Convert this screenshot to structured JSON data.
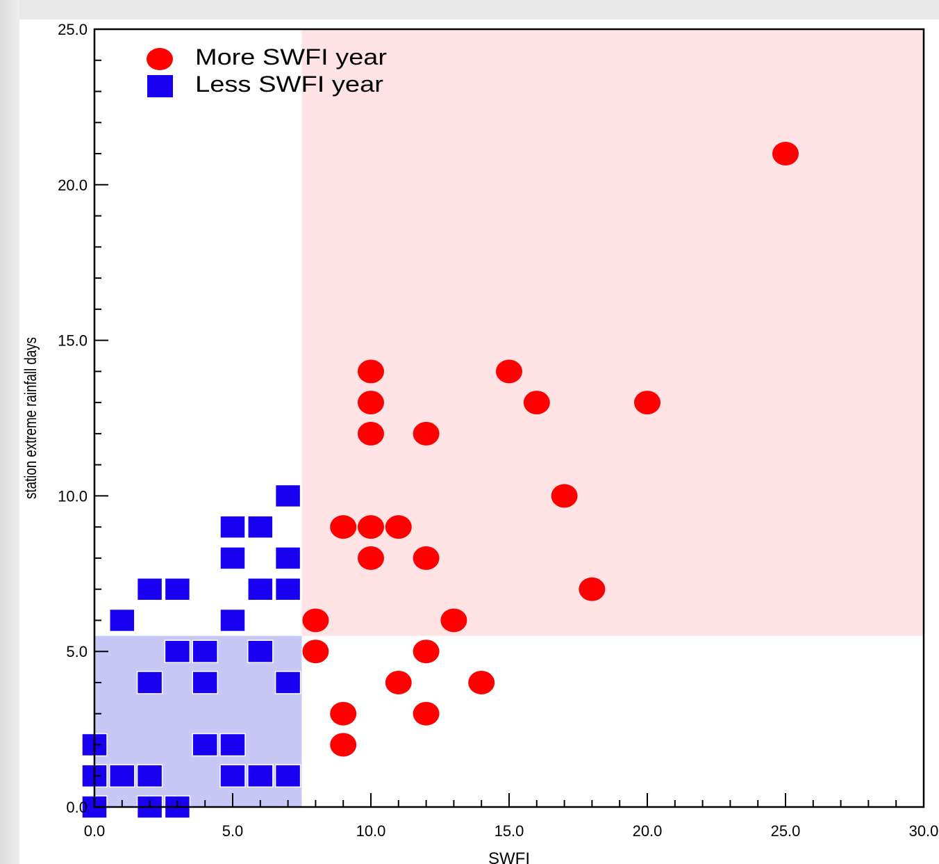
{
  "chart_data": {
    "type": "scatter",
    "title": "",
    "xlabel": "SWFI",
    "ylabel": "station extreme rainfall days",
    "xlim": [
      0,
      30
    ],
    "ylim": [
      0,
      25
    ],
    "x_ticks": [
      "0.0",
      "5.0",
      "10.0",
      "15.0",
      "20.0",
      "25.0",
      "30.0"
    ],
    "y_ticks": [
      "0.0",
      "5.0",
      "10.0",
      "15.0",
      "20.0",
      "25.0"
    ],
    "grid": false,
    "legend_position": "top-left",
    "shaded_regions": [
      {
        "label": "More SWFI region",
        "x": [
          7.5,
          30
        ],
        "y": [
          5.5,
          25
        ],
        "color": "#ffe3e5"
      },
      {
        "label": "Less SWFI region",
        "x": [
          0,
          7.5
        ],
        "y": [
          0,
          5.5
        ],
        "color": "#c8c8f7"
      }
    ],
    "series": [
      {
        "name": "More SWFI year",
        "marker": "circle",
        "color": "#ff0000",
        "points": [
          [
            25,
            21
          ],
          [
            10,
            14
          ],
          [
            15,
            14
          ],
          [
            10,
            13
          ],
          [
            16,
            13
          ],
          [
            20,
            13
          ],
          [
            10,
            12
          ],
          [
            12,
            12
          ],
          [
            17,
            10
          ],
          [
            9,
            9
          ],
          [
            10,
            9
          ],
          [
            11,
            9
          ],
          [
            10,
            8
          ],
          [
            12,
            8
          ],
          [
            18,
            7
          ],
          [
            8,
            6
          ],
          [
            13,
            6
          ],
          [
            8,
            5
          ],
          [
            12,
            5
          ],
          [
            11,
            4
          ],
          [
            14,
            4
          ],
          [
            9,
            3
          ],
          [
            12,
            3
          ],
          [
            9,
            2
          ]
        ]
      },
      {
        "name": "Less SWFI year",
        "marker": "square",
        "color": "#1a00f0",
        "points": [
          [
            7,
            10
          ],
          [
            5,
            9
          ],
          [
            6,
            9
          ],
          [
            5,
            8
          ],
          [
            7,
            8
          ],
          [
            2,
            7
          ],
          [
            3,
            7
          ],
          [
            6,
            7
          ],
          [
            7,
            7
          ],
          [
            1,
            6
          ],
          [
            5,
            6
          ],
          [
            3,
            5
          ],
          [
            4,
            5
          ],
          [
            6,
            5
          ],
          [
            2,
            4
          ],
          [
            4,
            4
          ],
          [
            7,
            4
          ],
          [
            0,
            2
          ],
          [
            4,
            2
          ],
          [
            5,
            2
          ],
          [
            0,
            1
          ],
          [
            1,
            1
          ],
          [
            2,
            1
          ],
          [
            5,
            1
          ],
          [
            6,
            1
          ],
          [
            7,
            1
          ],
          [
            0,
            0
          ],
          [
            2,
            0
          ],
          [
            3,
            0
          ]
        ]
      }
    ]
  }
}
